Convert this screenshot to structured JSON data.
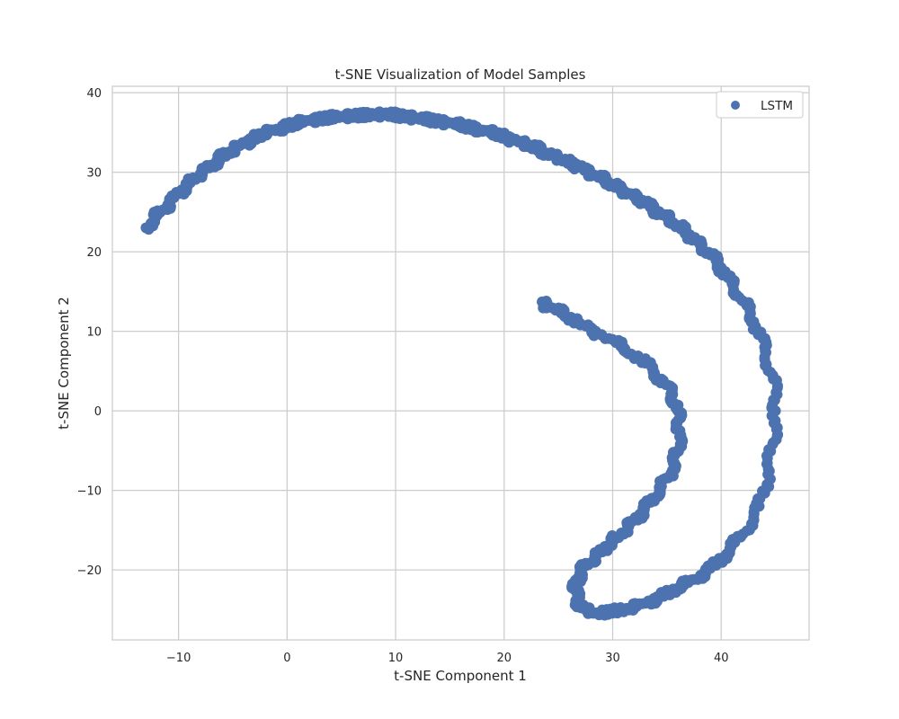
{
  "chart_data": {
    "type": "scatter",
    "title": "t-SNE Visualization of Model Samples",
    "xlabel": "t-SNE Component 1",
    "ylabel": "t-SNE Component 2",
    "xlim": [
      -16.1,
      48.1
    ],
    "ylim": [
      -28.8,
      40.8
    ],
    "xticks": [
      -10,
      0,
      10,
      20,
      30,
      40
    ],
    "yticks": [
      -20,
      -10,
      0,
      10,
      20,
      30,
      40
    ],
    "xtick_labels": [
      "−10",
      "0",
      "10",
      "20",
      "30",
      "40"
    ],
    "ytick_labels": [
      "−20",
      "−10",
      "0",
      "10",
      "20",
      "30",
      "40"
    ],
    "grid": true,
    "legend_position": "top-right",
    "series": [
      {
        "name": "LSTM",
        "color": "#4c72b0",
        "points": [
          [
            -13.0,
            23.0
          ],
          [
            -12.0,
            24.5
          ],
          [
            -11.0,
            25.9
          ],
          [
            -10.0,
            27.3
          ],
          [
            -9.0,
            28.6
          ],
          [
            -8.0,
            29.8
          ],
          [
            -7.0,
            30.9
          ],
          [
            -6.0,
            31.9
          ],
          [
            -5.0,
            32.8
          ],
          [
            -4.0,
            33.6
          ],
          [
            -3.0,
            34.3
          ],
          [
            -2.0,
            34.9
          ],
          [
            -1.0,
            35.4
          ],
          [
            0.0,
            35.8
          ],
          [
            1.0,
            36.2
          ],
          [
            2.0,
            36.5
          ],
          [
            3.0,
            36.7
          ],
          [
            4.0,
            36.9
          ],
          [
            5.0,
            37.0
          ],
          [
            6.0,
            37.1
          ],
          [
            7.0,
            37.2
          ],
          [
            8.0,
            37.2
          ],
          [
            9.0,
            37.3
          ],
          [
            10.0,
            37.2
          ],
          [
            11.0,
            37.0
          ],
          [
            12.0,
            36.8
          ],
          [
            13.0,
            36.6
          ],
          [
            14.0,
            36.4
          ],
          [
            15.0,
            36.2
          ],
          [
            16.0,
            35.9
          ],
          [
            17.0,
            35.6
          ],
          [
            18.0,
            35.3
          ],
          [
            19.0,
            34.9
          ],
          [
            20.0,
            34.5
          ],
          [
            21.0,
            34.0
          ],
          [
            22.0,
            33.5
          ],
          [
            23.0,
            33.0
          ],
          [
            24.0,
            32.4
          ],
          [
            25.0,
            31.8
          ],
          [
            26.0,
            31.2
          ],
          [
            27.0,
            30.6
          ],
          [
            28.0,
            29.9
          ],
          [
            29.0,
            29.2
          ],
          [
            30.0,
            28.5
          ],
          [
            31.0,
            27.7
          ],
          [
            32.0,
            26.9
          ],
          [
            33.0,
            26.1
          ],
          [
            34.0,
            25.2
          ],
          [
            35.0,
            24.3
          ],
          [
            36.0,
            23.3
          ],
          [
            37.0,
            22.2
          ],
          [
            38.0,
            21.0
          ],
          [
            39.0,
            19.6
          ],
          [
            40.0,
            18.0
          ],
          [
            41.0,
            16.0
          ],
          [
            42.0,
            13.8
          ],
          [
            43.0,
            11.2
          ],
          [
            44.0,
            8.0
          ],
          [
            44.8,
            4.0
          ],
          [
            45.0,
            0.0
          ],
          [
            44.8,
            -4.0
          ],
          [
            44.3,
            -8.0
          ],
          [
            43.5,
            -12.0
          ],
          [
            42.0,
            -15.5
          ],
          [
            40.5,
            -18.0
          ],
          [
            39.0,
            -19.8
          ],
          [
            37.5,
            -21.2
          ],
          [
            36.0,
            -22.3
          ],
          [
            34.5,
            -23.3
          ],
          [
            33.0,
            -24.2
          ],
          [
            31.5,
            -24.9
          ],
          [
            30.0,
            -25.2
          ],
          [
            28.5,
            -25.4
          ],
          [
            27.5,
            -25.0
          ],
          [
            26.8,
            -24.0
          ],
          [
            26.5,
            -22.5
          ],
          [
            26.8,
            -21.0
          ],
          [
            27.5,
            -19.5
          ],
          [
            28.5,
            -18.2
          ],
          [
            29.5,
            -17.0
          ],
          [
            30.5,
            -15.8
          ],
          [
            31.5,
            -14.5
          ],
          [
            32.5,
            -13.0
          ],
          [
            33.5,
            -11.5
          ],
          [
            34.5,
            -9.5
          ],
          [
            35.5,
            -7.5
          ],
          [
            36.0,
            -5.0
          ],
          [
            36.2,
            -2.5
          ],
          [
            36.0,
            0.0
          ],
          [
            35.5,
            2.0
          ],
          [
            34.5,
            4.0
          ],
          [
            33.0,
            6.0
          ],
          [
            31.0,
            8.0
          ],
          [
            29.0,
            9.5
          ],
          [
            27.0,
            11.0
          ],
          [
            25.5,
            12.2
          ],
          [
            24.0,
            13.2
          ],
          [
            23.5,
            13.7
          ]
        ]
      }
    ]
  }
}
